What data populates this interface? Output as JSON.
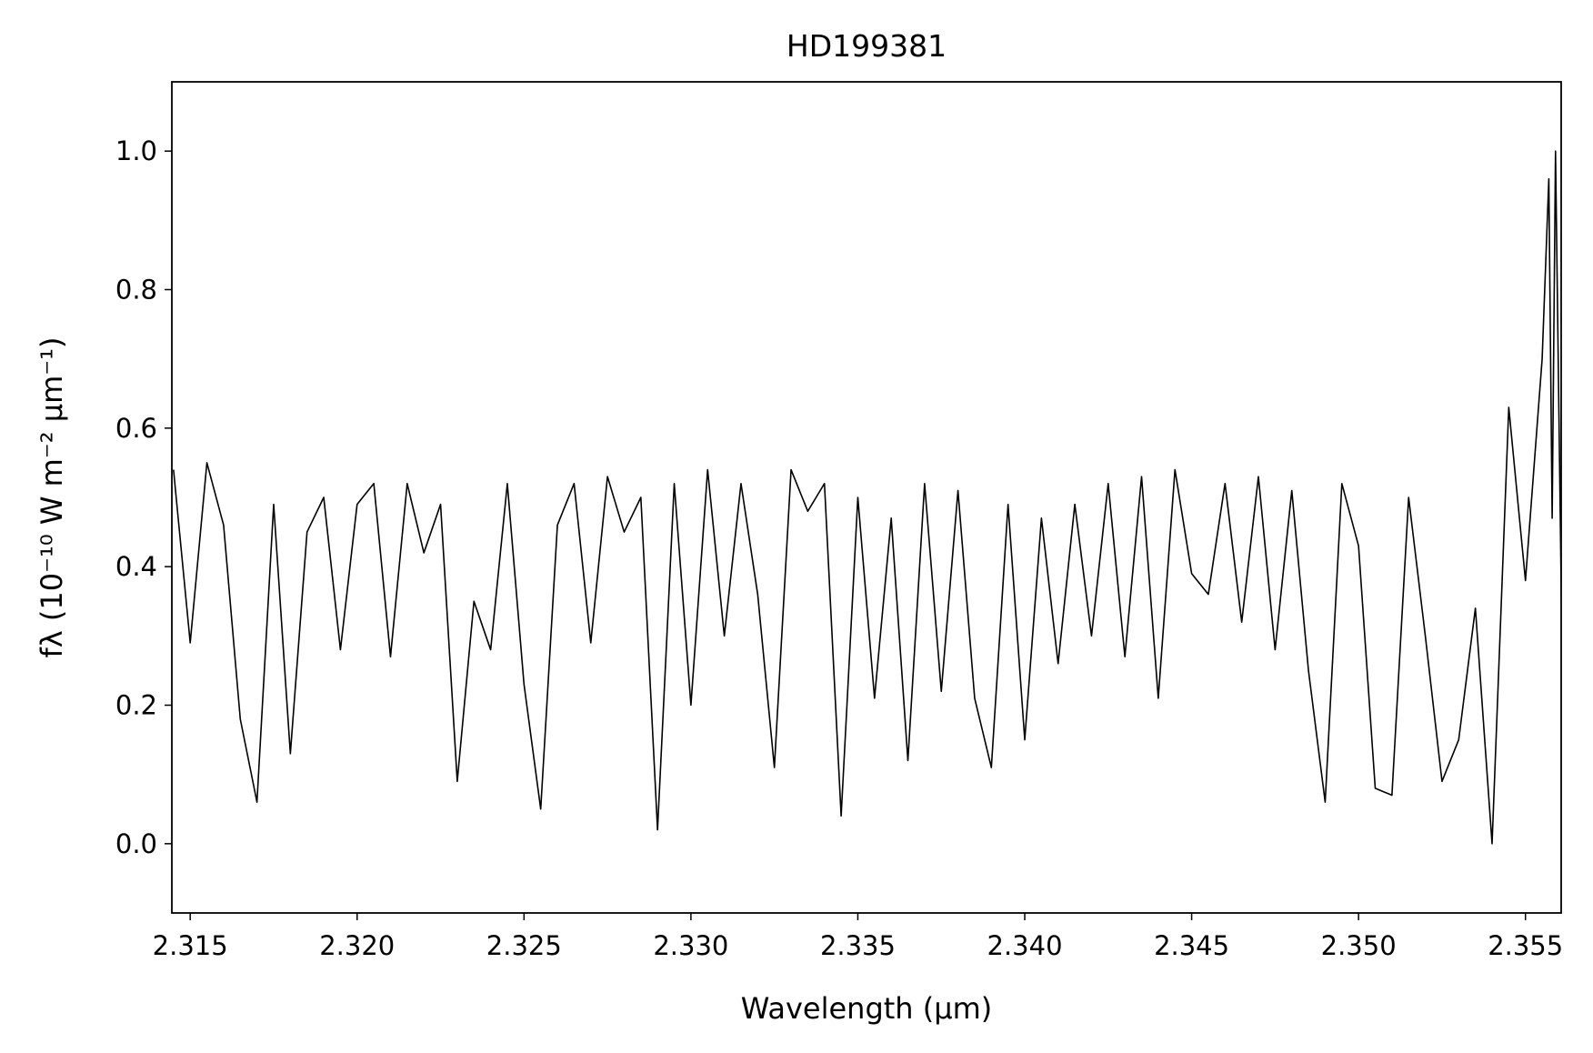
{
  "chart_data": {
    "type": "line",
    "title": "HD199381",
    "xlabel": "Wavelength (μm)",
    "ylabel": "fλ (10⁻¹⁰ W m⁻² μm⁻¹)",
    "xlim": [
      2.31445,
      2.35607
    ],
    "ylim": [
      -0.1,
      1.1
    ],
    "xticks": [
      2.315,
      {
        "value": 2.32,
        "label": "2.320"
      },
      2.325,
      {
        "value": 2.33,
        "label": "2.330"
      },
      2.335,
      {
        "value": 2.34,
        "label": "2.340"
      },
      2.345,
      {
        "value": 2.35,
        "label": "2.350"
      },
      2.355
    ],
    "yticks": [
      {
        "value": 0,
        "label": "0.0"
      },
      0.2,
      0.4,
      0.6,
      0.8,
      {
        "value": 1,
        "label": "1.0"
      }
    ],
    "grid": false,
    "series": [
      {
        "name": "HD199381",
        "color": "#000000",
        "x": [
          2.3145,
          2.315,
          2.3155,
          2.316,
          2.3165,
          2.317,
          2.3175,
          2.318,
          2.3185,
          2.319,
          2.3195,
          2.32,
          2.3205,
          2.321,
          2.3215,
          2.322,
          2.3225,
          2.323,
          2.3235,
          2.324,
          2.3245,
          2.325,
          2.3255,
          2.326,
          2.3265,
          2.327,
          2.3275,
          2.328,
          2.3285,
          2.329,
          2.3295,
          2.33,
          2.3305,
          2.331,
          2.3315,
          2.332,
          2.3325,
          2.333,
          2.3335,
          2.334,
          2.3345,
          2.335,
          2.3355,
          2.336,
          2.3365,
          2.337,
          2.3375,
          2.338,
          2.3385,
          2.339,
          2.3395,
          2.34,
          2.3405,
          2.341,
          2.3415,
          2.342,
          2.3425,
          2.343,
          2.3435,
          2.344,
          2.3445,
          2.345,
          2.3455,
          2.346,
          2.3465,
          2.347,
          2.3475,
          2.348,
          2.3485,
          2.349,
          2.3495,
          2.35,
          2.3505,
          2.351,
          2.3515,
          2.352,
          2.3525,
          2.353,
          2.3535,
          2.354,
          2.3545,
          2.355,
          2.3555,
          2.3557,
          2.3558,
          2.3559,
          2.3561
        ],
        "values": [
          0.54,
          0.29,
          0.55,
          0.46,
          0.18,
          0.06,
          0.49,
          0.13,
          0.45,
          0.5,
          0.28,
          0.49,
          0.52,
          0.27,
          0.52,
          0.42,
          0.49,
          0.09,
          0.35,
          0.28,
          0.52,
          0.23,
          0.05,
          0.46,
          0.52,
          0.29,
          0.53,
          0.45,
          0.5,
          0.02,
          0.52,
          0.2,
          0.54,
          0.3,
          0.52,
          0.36,
          0.11,
          0.54,
          0.48,
          0.52,
          0.04,
          0.5,
          0.21,
          0.47,
          0.12,
          0.52,
          0.22,
          0.51,
          0.21,
          0.11,
          0.49,
          0.15,
          0.47,
          0.26,
          0.49,
          0.3,
          0.52,
          0.27,
          0.53,
          0.21,
          0.54,
          0.39,
          0.36,
          0.52,
          0.32,
          0.53,
          0.28,
          0.51,
          0.25,
          0.06,
          0.52,
          0.43,
          0.08,
          0.07,
          0.5,
          0.3,
          0.09,
          0.15,
          0.34,
          0.0,
          0.63,
          0.38,
          0.7,
          0.96,
          0.47,
          1.0,
          0.26
        ]
      }
    ]
  }
}
